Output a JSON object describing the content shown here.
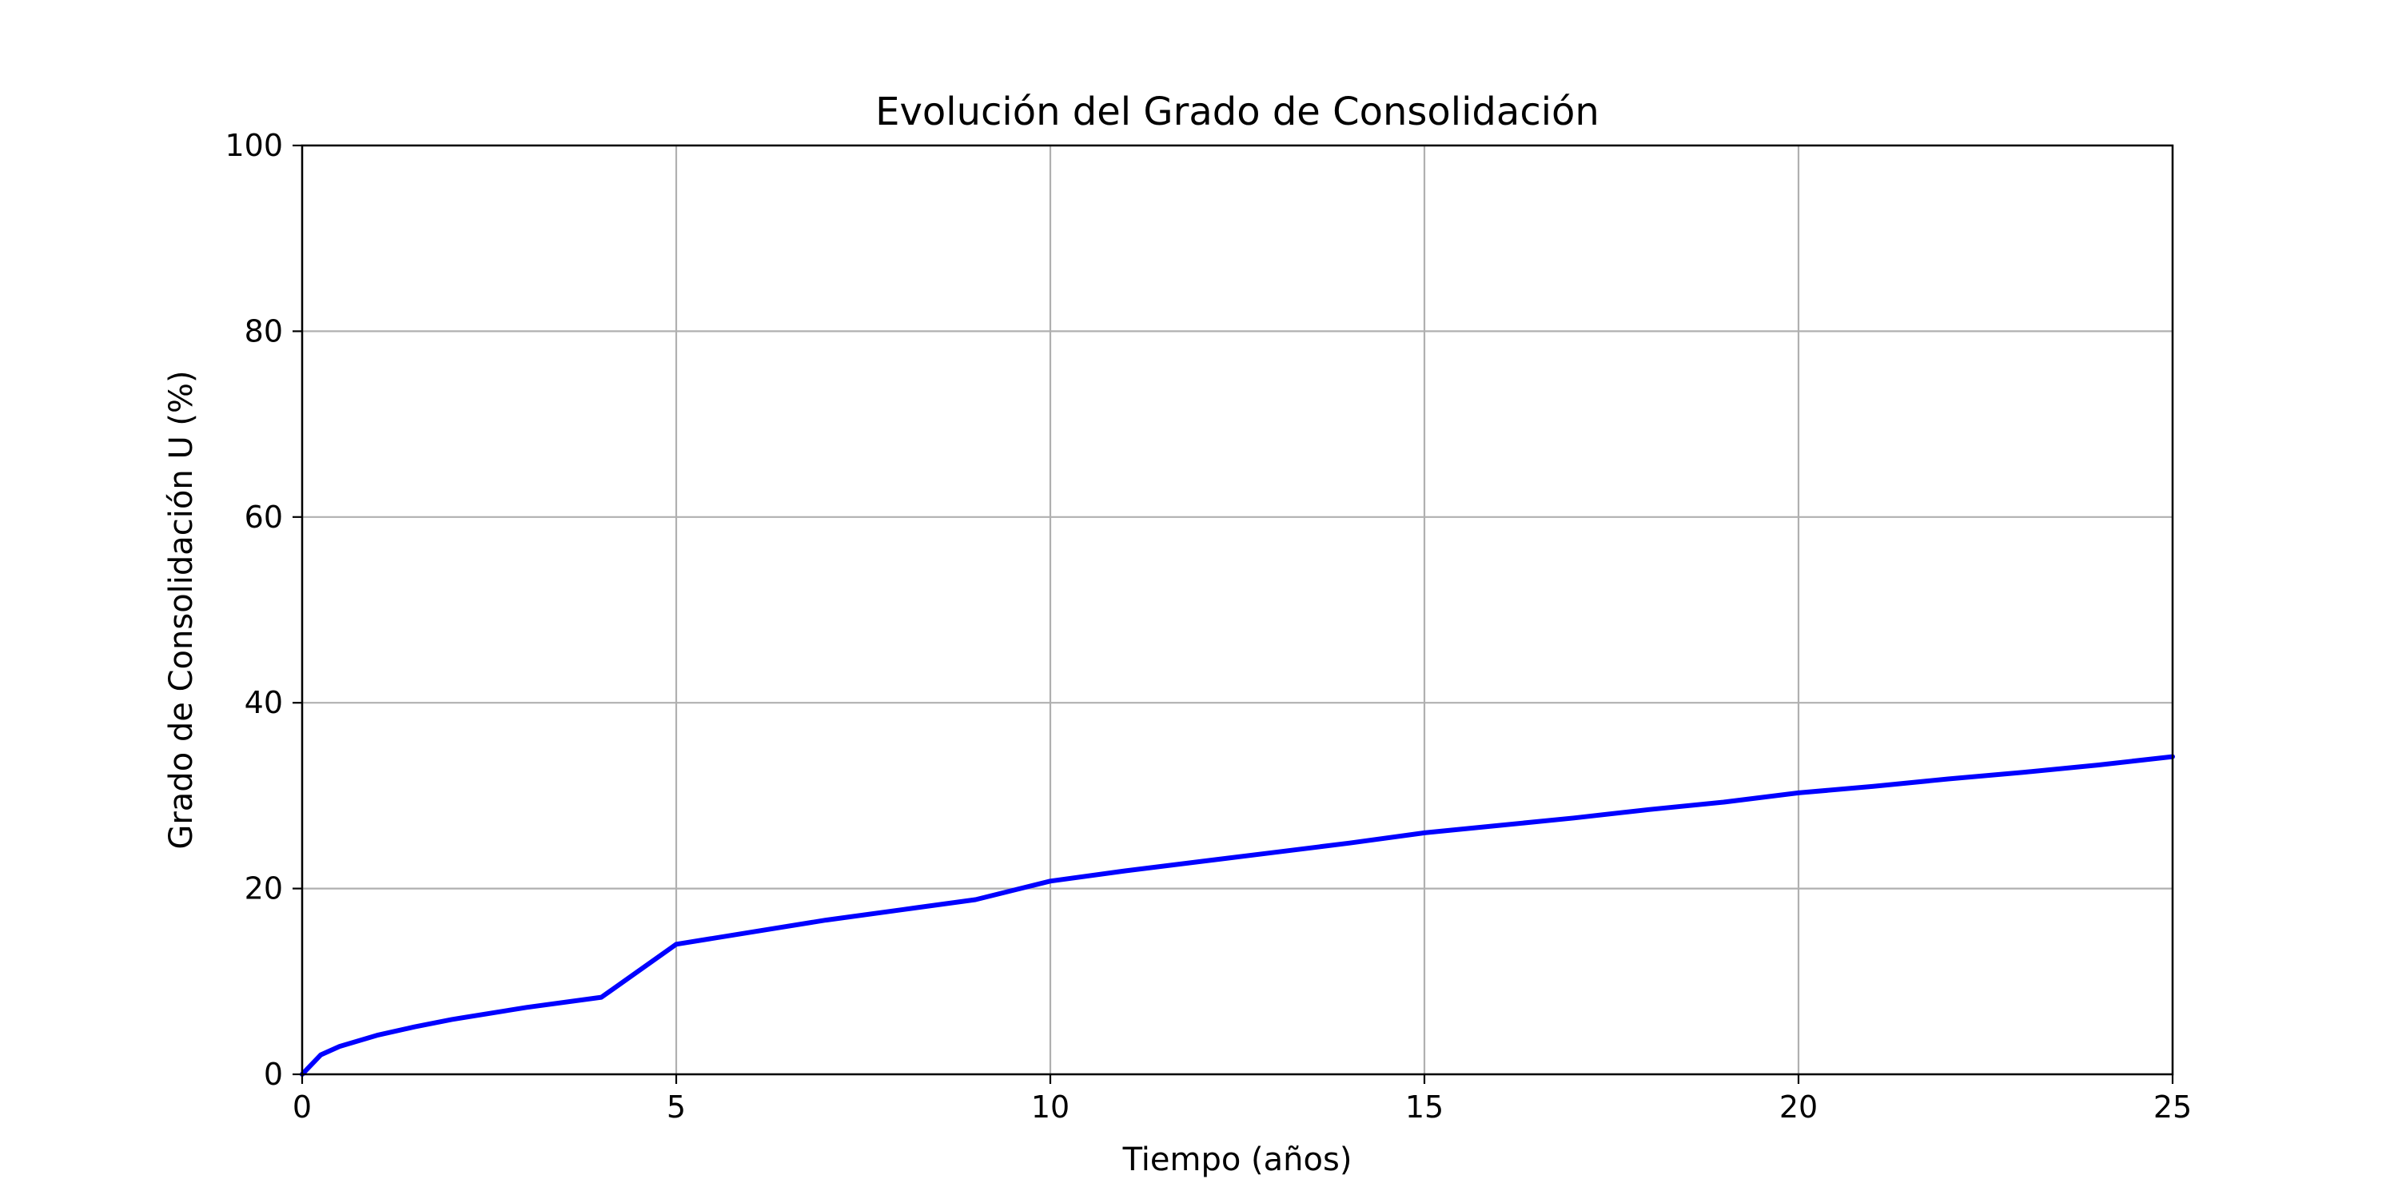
{
  "chart_data": {
    "type": "line",
    "title": "Evolución del Grado de Consolidación",
    "xlabel": "Tiempo (años)",
    "ylabel": "Grado de Consolidación U (%)",
    "xlim": [
      0,
      25
    ],
    "ylim": [
      0,
      100
    ],
    "xticks": [
      "0",
      "5",
      "10",
      "15",
      "20",
      "25"
    ],
    "yticks": [
      "0",
      "20",
      "40",
      "60",
      "80",
      "100"
    ],
    "grid": true,
    "series": [
      {
        "color": "#0000ff",
        "x": [
          0,
          0.25,
          0.5,
          1,
          1.5,
          2,
          3,
          4,
          5,
          6,
          7,
          8,
          9,
          10,
          11,
          12,
          13,
          14,
          15,
          16,
          17,
          18,
          19,
          20,
          21,
          22,
          23,
          24,
          25
        ],
        "y": [
          0,
          2.1,
          3.0,
          4.2,
          5.1,
          5.9,
          7.2,
          8.3,
          14.0,
          15.3,
          16.6,
          17.7,
          18.8,
          20.8,
          21.9,
          22.9,
          23.9,
          24.9,
          26.0,
          26.8,
          27.6,
          28.5,
          29.3,
          30.3,
          31.0,
          31.8,
          32.5,
          33.3,
          34.2
        ]
      }
    ]
  }
}
